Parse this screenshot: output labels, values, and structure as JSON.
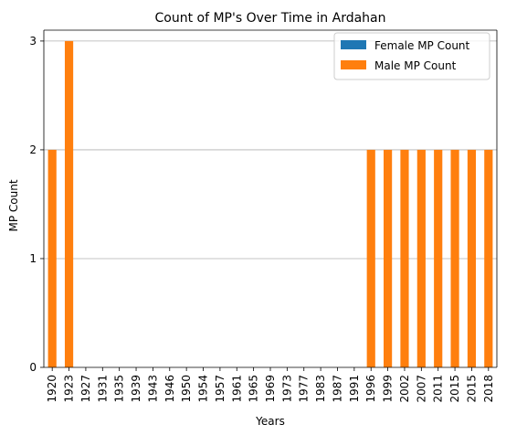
{
  "chart_data": {
    "type": "bar",
    "stacked": true,
    "title": "Count of MP's Over Time in Ardahan",
    "xlabel": "Years",
    "ylabel": "MP Count",
    "categories": [
      "1920",
      "1923",
      "1927",
      "1931",
      "1935",
      "1939",
      "1943",
      "1946",
      "1950",
      "1954",
      "1957",
      "1961",
      "1965",
      "1969",
      "1973",
      "1977",
      "1983",
      "1987",
      "1991",
      "1996",
      "1999",
      "2002",
      "2007",
      "2011",
      "2015",
      "2015",
      "2018"
    ],
    "series": [
      {
        "name": "Female MP Count",
        "color": "#1f77b4",
        "values": [
          0,
          0,
          0,
          0,
          0,
          0,
          0,
          0,
          0,
          0,
          0,
          0,
          0,
          0,
          0,
          0,
          0,
          0,
          0,
          0,
          0,
          0,
          0,
          0,
          0,
          0,
          0
        ]
      },
      {
        "name": "Male MP Count",
        "color": "#ff7f0e",
        "values": [
          2,
          3,
          0,
          0,
          0,
          0,
          0,
          0,
          0,
          0,
          0,
          0,
          0,
          0,
          0,
          0,
          0,
          0,
          0,
          2,
          2,
          2,
          2,
          2,
          2,
          2,
          2
        ]
      }
    ],
    "ylim": [
      0,
      3.1
    ],
    "yticks": [
      0,
      1,
      2,
      3
    ],
    "grid": "y",
    "legend_position": "upper right"
  }
}
